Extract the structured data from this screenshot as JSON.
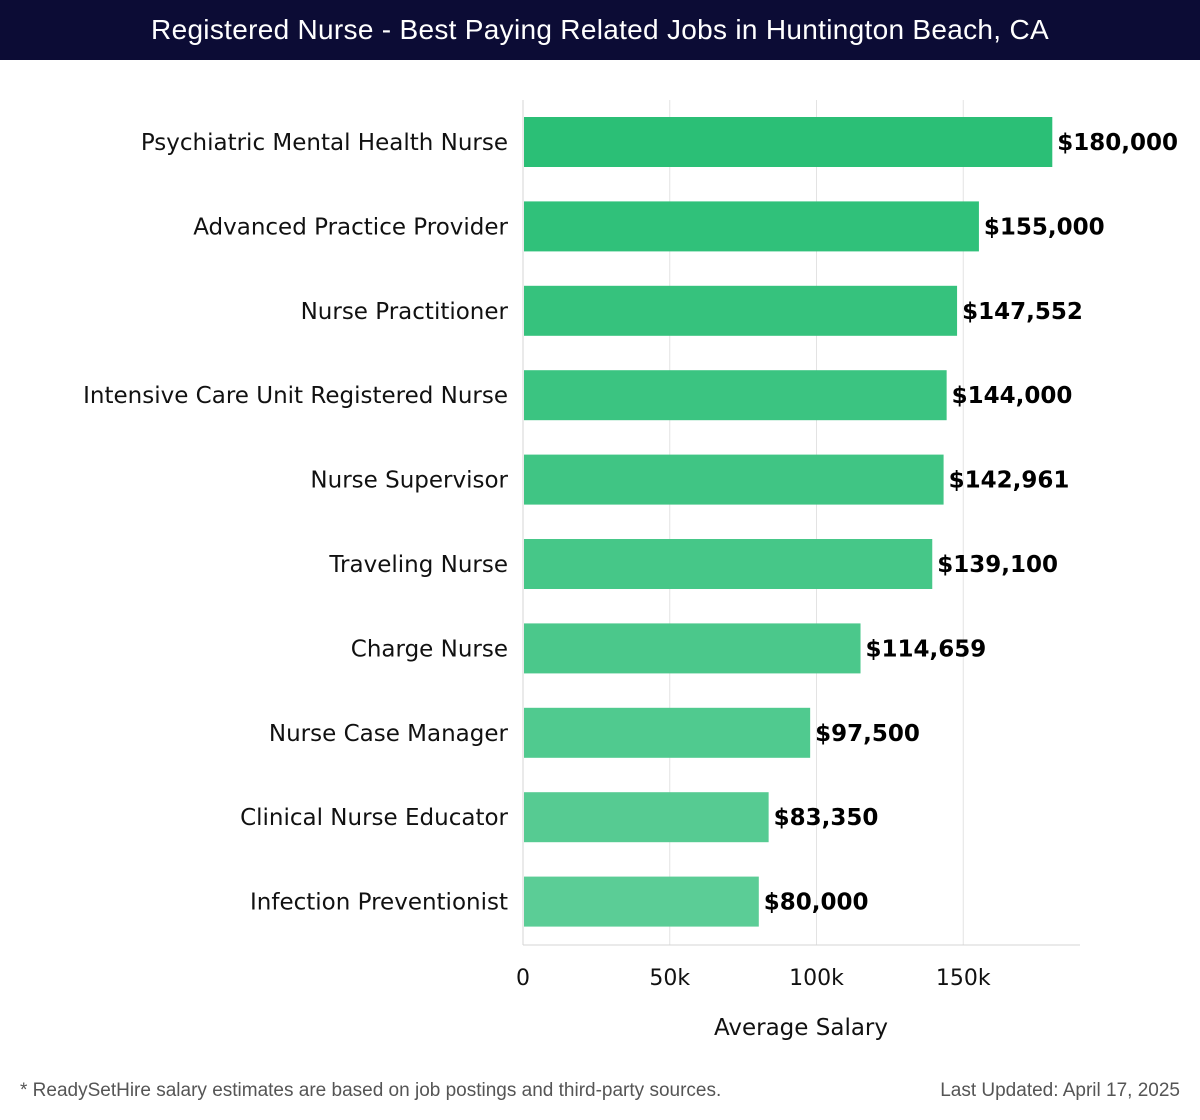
{
  "header": {
    "title": "Registered Nurse - Best Paying Related Jobs in Huntington Beach, CA"
  },
  "footer": {
    "note": "* ReadySetHire salary estimates are based on job postings and third-party sources.",
    "updated": "Last Updated: April 17, 2025"
  },
  "colors": {
    "title_bg": "#0c0c35",
    "bar_top": "#2bbf76",
    "bar_bottom": "#5bcd96",
    "grid": "#e3e3e3"
  },
  "chart_data": {
    "type": "bar",
    "orientation": "horizontal",
    "title": "Registered Nurse - Best Paying Related Jobs in Huntington Beach, CA",
    "xlabel": "Average Salary",
    "ylabel": "",
    "xlim": [
      0,
      190000
    ],
    "xticks": [
      0,
      50000,
      100000,
      150000
    ],
    "xtick_labels": [
      "0",
      "50k",
      "100k",
      "150k"
    ],
    "grid": true,
    "categories": [
      "Psychiatric Mental Health Nurse",
      "Advanced Practice Provider",
      "Nurse Practitioner",
      "Intensive Care Unit Registered Nurse",
      "Nurse Supervisor",
      "Traveling Nurse",
      "Charge Nurse",
      "Nurse Case Manager",
      "Clinical Nurse Educator",
      "Infection Preventionist"
    ],
    "values": [
      180000,
      155000,
      147552,
      144000,
      142961,
      139100,
      114659,
      97500,
      83350,
      80000
    ],
    "value_labels": [
      "$180,000",
      "$155,000",
      "$147,552",
      "$144,000",
      "$142,961",
      "$139,100",
      "$114,659",
      "$97,500",
      "$83,350",
      "$80,000"
    ]
  }
}
